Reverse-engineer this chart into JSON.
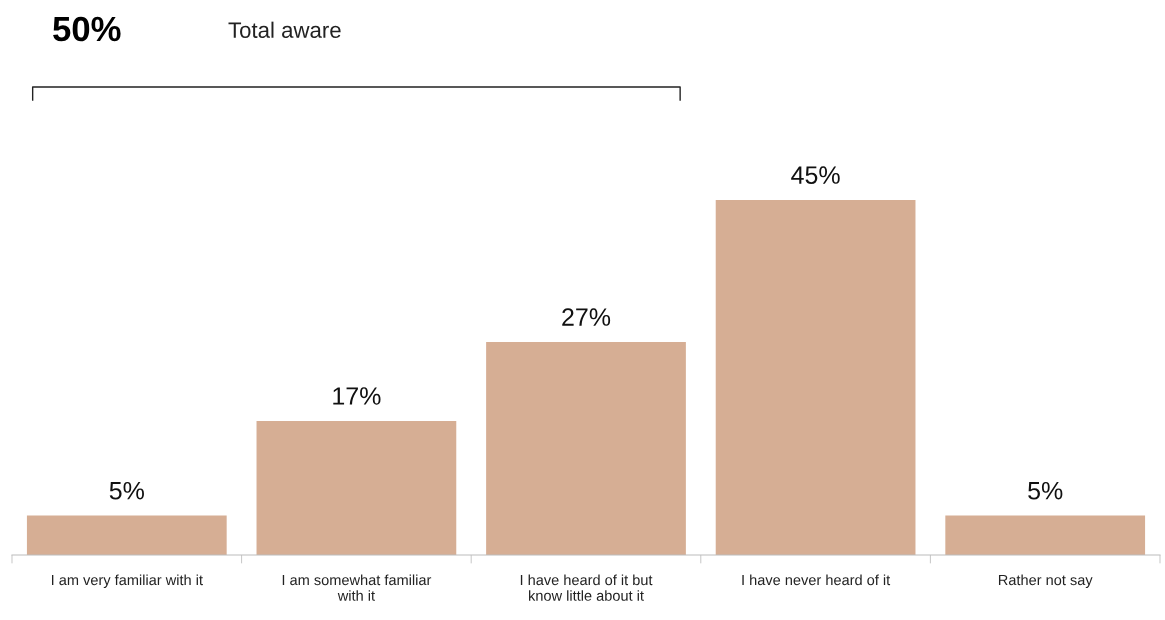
{
  "chart_data": {
    "type": "bar",
    "categories": [
      "I am very familiar with it",
      "I am somewhat familiar\nwith it",
      "I have heard of it but\nknow little about it",
      "I have never heard of it",
      "Rather not say"
    ],
    "values": [
      5,
      17,
      27,
      45,
      5
    ],
    "color": "#d6ae94",
    "value_labels": [
      "5%",
      "17%",
      "27%",
      "45%",
      "5%"
    ],
    "annotations": [
      "50%",
      "Total aware"
    ],
    "grid": false,
    "legend": false
  }
}
